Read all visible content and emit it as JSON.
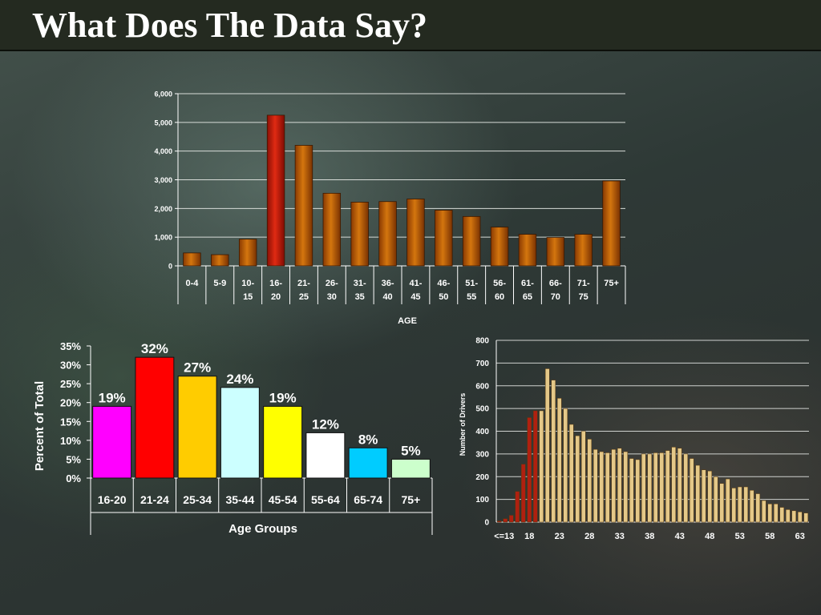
{
  "slide": {
    "title": "What Does The Data Say?"
  },
  "colors": {
    "orange": "#d4760e",
    "red_highlight": "#e02a12",
    "dark_red": "#b02010",
    "tan": "#e4c888",
    "age_groups": [
      "#ff00ff",
      "#ff0000",
      "#ffcc00",
      "#ccffff",
      "#ffff00",
      "#ffffff",
      "#00ccff",
      "#ccffcc"
    ]
  },
  "chart_data": [
    {
      "type": "bar",
      "title": "",
      "xlabel": "AGE",
      "ylabel": "",
      "categories": [
        [
          "0-4"
        ],
        [
          "5-9"
        ],
        [
          "10-",
          "15"
        ],
        [
          "16-",
          "20"
        ],
        [
          "21-",
          "25"
        ],
        [
          "26-",
          "30"
        ],
        [
          "31-",
          "35"
        ],
        [
          "36-",
          "40"
        ],
        [
          "41-",
          "45"
        ],
        [
          "46-",
          "50"
        ],
        [
          "51-",
          "55"
        ],
        [
          "56-",
          "60"
        ],
        [
          "61-",
          "65"
        ],
        [
          "66-",
          "70"
        ],
        [
          "71-",
          "75"
        ],
        [
          "75+"
        ]
      ],
      "values": [
        450,
        390,
        930,
        5250,
        4200,
        2530,
        2220,
        2240,
        2330,
        1940,
        1720,
        1350,
        1100,
        990,
        1100,
        2960
      ],
      "highlight_index": 3,
      "ylim": [
        0,
        6000
      ],
      "yticks": [
        "0",
        "1,000",
        "2,000",
        "3,000",
        "4,000",
        "5,000",
        "6,000"
      ],
      "grid": true,
      "legend": "none"
    },
    {
      "type": "bar",
      "title": "",
      "xlabel": "Age Groups",
      "ylabel": "Percent of Total",
      "categories": [
        "16-20",
        "21-24",
        "25-34",
        "35-44",
        "45-54",
        "55-64",
        "65-74",
        "75+"
      ],
      "values": [
        19,
        32,
        27,
        24,
        19,
        12,
        8,
        5
      ],
      "data_labels": [
        "19%",
        "32%",
        "27%",
        "24%",
        "19%",
        "12%",
        "8%",
        "5%"
      ],
      "ylim": [
        0,
        35
      ],
      "yticks": [
        "0%",
        "5%",
        "10%",
        "15%",
        "20%",
        "25%",
        "30%",
        "35%"
      ],
      "grid": false,
      "legend": "none"
    },
    {
      "type": "bar",
      "title": "",
      "xlabel": "",
      "ylabel": "Number of Drivers",
      "x": [
        "<=13",
        "14",
        "15",
        "16",
        "17",
        "18",
        "19",
        "20",
        "21",
        "22",
        "23",
        "24",
        "25",
        "26",
        "27",
        "28",
        "29",
        "30",
        "31",
        "32",
        "33",
        "34",
        "35",
        "36",
        "37",
        "38",
        "39",
        "40",
        "41",
        "42",
        "43",
        "44",
        "45",
        "46",
        "47",
        "48",
        "49",
        "50",
        "51",
        "52",
        "53",
        "54",
        "55",
        "56",
        "57",
        "58",
        "59",
        "60",
        "61",
        "62",
        "63",
        "64"
      ],
      "values": [
        5,
        15,
        30,
        135,
        255,
        460,
        490,
        490,
        675,
        625,
        545,
        500,
        430,
        380,
        400,
        365,
        320,
        310,
        305,
        320,
        325,
        310,
        280,
        275,
        300,
        300,
        305,
        305,
        315,
        330,
        325,
        300,
        280,
        250,
        230,
        225,
        200,
        170,
        190,
        150,
        155,
        155,
        140,
        125,
        95,
        80,
        80,
        65,
        55,
        50,
        45,
        40
      ],
      "red_count": 7,
      "xtick_labels": [
        "<=13",
        "18",
        "23",
        "28",
        "33",
        "38",
        "43",
        "48",
        "53",
        "58",
        "63"
      ],
      "ylim": [
        0,
        800
      ],
      "yticks": [
        "0",
        "100",
        "200",
        "300",
        "400",
        "500",
        "600",
        "700",
        "800"
      ],
      "grid": true,
      "legend": "none"
    }
  ]
}
